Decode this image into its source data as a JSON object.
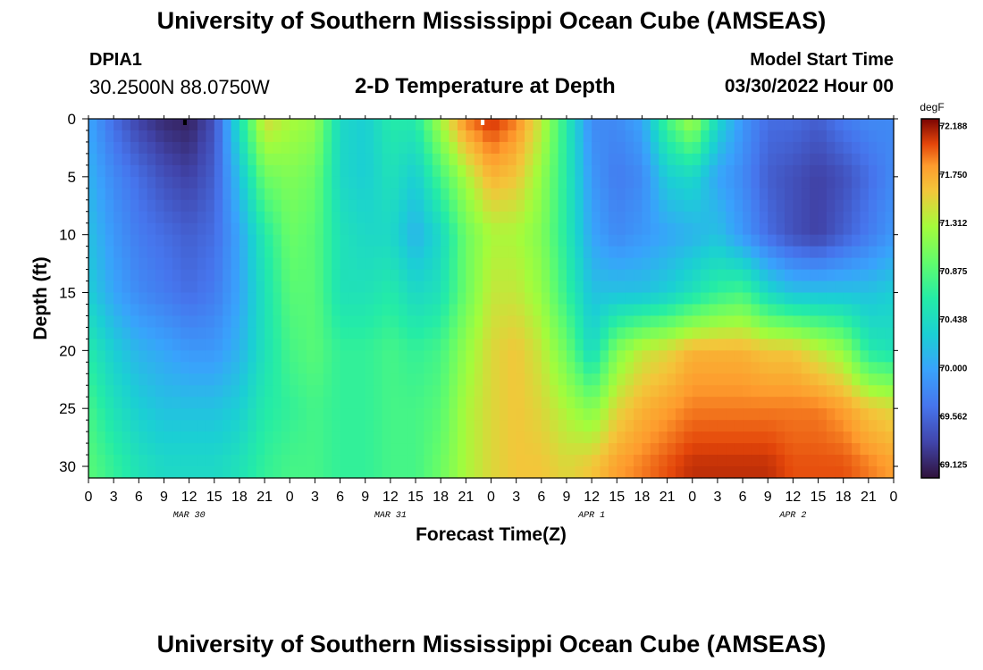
{
  "header": {
    "title": "University of Southern Mississippi Ocean Cube (AMSEAS)",
    "station_id": "DPIA1",
    "station_coords": "30.2500N  88.0750W",
    "plot_title": "2-D Temperature at Depth",
    "model_start_label": "Model Start Time",
    "model_start_value": "03/30/2022 Hour 00"
  },
  "footer": {
    "title": "University of Southern Mississippi Ocean Cube (AMSEAS)"
  },
  "chart_data": {
    "type": "heatmap",
    "title": "2-D Temperature at Depth",
    "xlabel": "Forecast Time(Z)",
    "ylabel": "Depth (ft)",
    "x_ticks": [
      "0",
      "3",
      "6",
      "9",
      "12",
      "15",
      "18",
      "21",
      "0",
      "3",
      "6",
      "9",
      "12",
      "15",
      "18",
      "21",
      "0",
      "3",
      "6",
      "9",
      "12",
      "15",
      "18",
      "21",
      "0",
      "3",
      "6",
      "9",
      "12",
      "15",
      "18",
      "21",
      "0"
    ],
    "date_labels": [
      {
        "label": "MAR 30",
        "at_hour": 12
      },
      {
        "label": "MAR 31",
        "at_hour": 36
      },
      {
        "label": "APR 1",
        "at_hour": 60
      },
      {
        "label": "APR 2",
        "at_hour": 84
      }
    ],
    "xlim_hours": [
      0,
      96
    ],
    "ylim_ft": [
      0,
      31
    ],
    "y_ticks": [
      0,
      5,
      10,
      15,
      20,
      25,
      30
    ],
    "colorbar": {
      "unit": "degF",
      "min": 69.0,
      "max": 72.25,
      "labels": [
        "72.188",
        "71.750",
        "71.312",
        "70.875",
        "70.438",
        "70.000",
        "69.562",
        "69.125"
      ]
    },
    "grid": {
      "hours": [
        0,
        3,
        6,
        9,
        12,
        15,
        18,
        21,
        24,
        27,
        30,
        33,
        36,
        39,
        42,
        45,
        48,
        51,
        54,
        57,
        60,
        63,
        66,
        69,
        72,
        75,
        78,
        81,
        84,
        87,
        90,
        93,
        96
      ],
      "depths_ft": [
        0,
        5,
        10,
        15,
        20,
        25,
        30
      ],
      "values_degF": [
        [
          70.0,
          69.6,
          69.3,
          69.15,
          69.1,
          69.4,
          70.5,
          71.5,
          71.3,
          71.2,
          70.4,
          70.3,
          70.6,
          70.6,
          71.3,
          71.9,
          72.1,
          71.9,
          71.4,
          70.6,
          69.8,
          69.8,
          70.0,
          70.8,
          71.3,
          70.4,
          69.9,
          69.6,
          69.6,
          69.5,
          69.7,
          69.8,
          69.8
        ],
        [
          70.1,
          69.8,
          69.6,
          69.4,
          69.3,
          69.5,
          70.2,
          71.0,
          71.1,
          71.0,
          70.4,
          70.3,
          70.5,
          70.3,
          70.8,
          71.3,
          71.7,
          71.6,
          71.2,
          70.6,
          69.9,
          69.7,
          69.8,
          70.3,
          70.4,
          70.0,
          69.8,
          69.5,
          69.4,
          69.3,
          69.4,
          69.6,
          69.8
        ],
        [
          70.2,
          69.9,
          69.7,
          69.6,
          69.5,
          69.6,
          70.0,
          70.6,
          71.0,
          70.9,
          70.5,
          70.4,
          70.4,
          70.1,
          70.4,
          71.0,
          71.3,
          71.3,
          71.1,
          70.6,
          70.0,
          69.8,
          69.9,
          70.0,
          70.1,
          70.2,
          69.9,
          69.6,
          69.4,
          69.3,
          69.5,
          69.7,
          69.9
        ],
        [
          70.3,
          70.0,
          69.8,
          69.7,
          69.6,
          69.7,
          70.0,
          70.5,
          70.9,
          70.9,
          70.5,
          70.5,
          70.6,
          70.4,
          70.5,
          71.0,
          71.4,
          71.4,
          71.2,
          70.7,
          70.2,
          70.2,
          70.2,
          70.3,
          70.5,
          70.7,
          70.8,
          70.4,
          70.2,
          70.2,
          70.2,
          70.2,
          70.3
        ],
        [
          70.6,
          70.3,
          70.1,
          70.0,
          69.9,
          69.9,
          70.1,
          70.5,
          70.8,
          70.9,
          70.7,
          70.7,
          70.8,
          70.7,
          70.8,
          71.2,
          71.5,
          71.6,
          71.4,
          71.0,
          70.4,
          71.1,
          71.4,
          71.5,
          71.7,
          71.7,
          71.7,
          71.6,
          71.6,
          71.4,
          71.2,
          70.6,
          70.5
        ],
        [
          70.8,
          70.5,
          70.3,
          70.2,
          70.2,
          70.2,
          70.3,
          70.6,
          70.7,
          70.8,
          70.7,
          70.7,
          70.8,
          70.8,
          70.9,
          71.3,
          71.5,
          71.6,
          71.5,
          71.3,
          71.1,
          71.5,
          71.7,
          71.8,
          71.9,
          71.9,
          71.9,
          71.9,
          71.9,
          71.9,
          71.8,
          71.6,
          71.5
        ],
        [
          70.9,
          70.7,
          70.5,
          70.4,
          70.4,
          70.4,
          70.5,
          70.7,
          70.8,
          70.8,
          70.7,
          70.7,
          70.8,
          70.8,
          71.0,
          71.3,
          71.5,
          71.6,
          71.6,
          71.5,
          71.6,
          71.8,
          71.9,
          72.0,
          72.1,
          72.1,
          72.1,
          72.1,
          72.0,
          72.0,
          72.0,
          71.9,
          71.8
        ]
      ]
    }
  }
}
